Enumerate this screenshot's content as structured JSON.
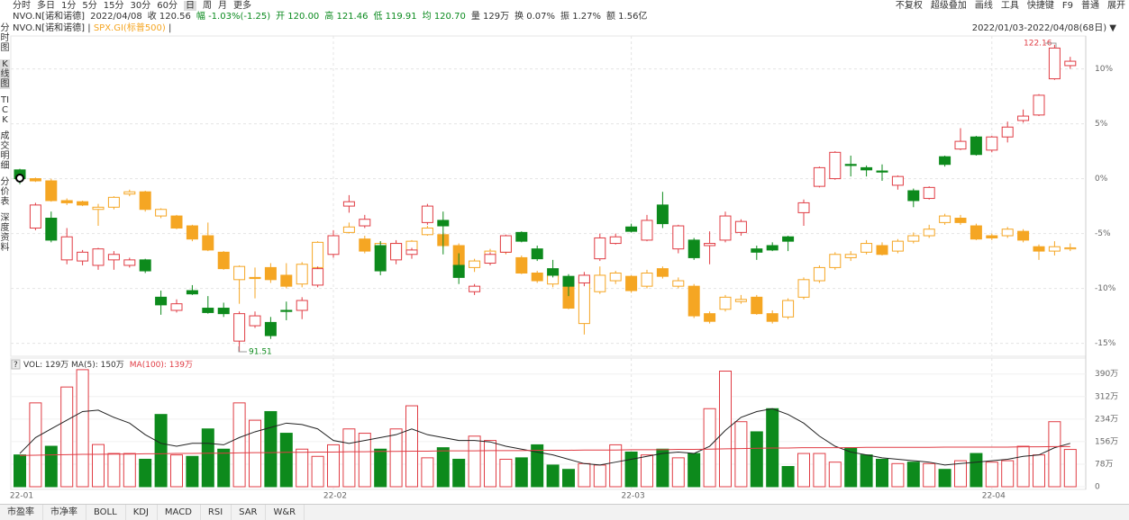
{
  "toolbar": {
    "periods": [
      "分时",
      "多日",
      "1分",
      "5分",
      "15分",
      "30分",
      "60分",
      "日",
      "周",
      "月",
      "更多"
    ],
    "tools": [
      "不复权",
      "超级叠加",
      "画线",
      "工具",
      "快捷键",
      "F9",
      "普通",
      "展开"
    ]
  },
  "info": [
    "NVO.N[诺和诺德]",
    "2022/04/08",
    "收 120.56",
    "幅 -1.03%(-1.25)",
    "开 120.00",
    "高 121.46",
    "低 119.91",
    "均 120.70",
    "量 129万",
    "换 0.07%",
    "振 1.27%",
    "额 1.56亿"
  ],
  "range": "2022/01/03-2022/04/08(68日)",
  "sidebar": [
    "分时图",
    "K线图",
    "TICK",
    "成交明细",
    "分价表",
    "深度资料"
  ],
  "tabs": [
    "市盈率",
    "市净率",
    "BOLL",
    "KDJ",
    "MACD",
    "RSI",
    "SAR",
    "W&R"
  ],
  "chart_data": [
    {
      "type": "candlestick",
      "ylim": [
        -16.1,
        13
      ],
      "yticks": [
        {
          "value": 10,
          "label": "10%"
        },
        {
          "value": 5,
          "label": "5%"
        },
        {
          "value": 0,
          "label": "0%"
        },
        {
          "value": -5,
          "label": "-5%"
        },
        {
          "value": -10,
          "label": "-10%"
        },
        {
          "value": -15,
          "label": "-15%"
        }
      ],
      "grid": true,
      "annotations": [
        "122.16",
        "91.51"
      ],
      "series": [
        {
          "name": "SPX.GI(标普500)",
          "up_color": "#f5a623",
          "down_color": "#f5a623",
          "open": [
            0.1,
            0.0,
            -0.2,
            -2.0,
            -2.1,
            -2.8,
            -2.6,
            -1.4,
            -1.2,
            -3.4,
            -3.4,
            -4.3,
            -5.2,
            -6.7,
            -9.2,
            -9.0,
            -8.1,
            -8.8,
            -9.6,
            -8.1,
            -6.7,
            -4.9,
            -5.5,
            -6.3,
            -5.9,
            -6.6,
            -5.1,
            -5.1,
            -6.1,
            -8.1,
            -7.7,
            -6.7,
            -7.2,
            -8.6,
            -9.6,
            -9.8,
            -13.2,
            -10.3,
            -9.3,
            -8.9,
            -9.8,
            -8.2,
            -9.8,
            -9.8,
            -12.3,
            -11.9,
            -11.2,
            -10.8,
            -12.3,
            -12.6,
            -10.8,
            -9.3,
            -8.1,
            -7.2,
            -6.7,
            -6.1,
            -6.6,
            -5.7,
            -5.2,
            -4.0,
            -3.6,
            -4.3,
            -5.2,
            -5.2,
            -4.8,
            -6.2,
            -6.6,
            -6.4
          ],
          "high": [
            0.3,
            0.1,
            0,
            -1.8,
            -2.0,
            -2.3,
            -1.6,
            -1.0,
            -1.1,
            -2.7,
            -3.3,
            -4.2,
            -4.0,
            -6.6,
            -7.9,
            -8.1,
            -7.7,
            -7.7,
            -7.6,
            -5.7,
            -4.9,
            -4.0,
            -5.2,
            -5.7,
            -5.7,
            -5.6,
            -4.3,
            -4.9,
            -5.9,
            -7.3,
            -6.4,
            -5.5,
            -7.0,
            -8.4,
            -8.3,
            -9.6,
            -8.8,
            -8.0,
            -8.4,
            -8.8,
            -8.3,
            -8.0,
            -9.0,
            -9.6,
            -12.1,
            -10.6,
            -10.6,
            -10.6,
            -12.0,
            -10.9,
            -9.0,
            -7.9,
            -6.7,
            -6.6,
            -5.6,
            -5.8,
            -5.5,
            -4.9,
            -4.2,
            -3.2,
            -3.3,
            -4.1,
            -5.0,
            -4.4,
            -4.6,
            -6.0,
            -5.7,
            -5.9
          ],
          "low": [
            -0.3,
            -0.3,
            -2.1,
            -2.4,
            -2.5,
            -4.3,
            -2.8,
            -1.6,
            -3.0,
            -3.6,
            -4.6,
            -5.7,
            -6.6,
            -8.3,
            -11.4,
            -10.9,
            -9.5,
            -10.0,
            -9.9,
            -8.3,
            -6.9,
            -5.0,
            -6.8,
            -6.8,
            -7.3,
            -6.9,
            -5.2,
            -6.3,
            -8.1,
            -8.5,
            -7.8,
            -6.9,
            -8.7,
            -9.5,
            -9.9,
            -11.9,
            -14.2,
            -10.5,
            -9.6,
            -10.4,
            -10.0,
            -9.1,
            -10.0,
            -12.7,
            -13.2,
            -12.1,
            -11.4,
            -12.4,
            -13.2,
            -12.8,
            -11.0,
            -9.5,
            -8.3,
            -7.5,
            -6.9,
            -7.0,
            -6.8,
            -5.9,
            -5.4,
            -4.2,
            -4.2,
            -5.6,
            -5.6,
            -5.4,
            -5.8,
            -7.4,
            -7.0,
            -6.6
          ],
          "close": [
            0,
            -0.2,
            -2.0,
            -2.2,
            -2.4,
            -2.6,
            -1.7,
            -1.2,
            -2.8,
            -2.8,
            -4.5,
            -5.5,
            -6.5,
            -8.2,
            -8.0,
            -9.1,
            -9.2,
            -9.8,
            -7.8,
            -5.8,
            -5.2,
            -4.4,
            -6.6,
            -5.9,
            -7.2,
            -5.7,
            -4.5,
            -6.1,
            -8.0,
            -7.5,
            -6.6,
            -5.7,
            -8.6,
            -9.3,
            -8.8,
            -11.8,
            -9.0,
            -8.8,
            -8.6,
            -10.2,
            -8.6,
            -8.9,
            -9.3,
            -12.5,
            -13.0,
            -10.8,
            -11.0,
            -12.3,
            -13.0,
            -11.1,
            -9.2,
            -8.1,
            -6.9,
            -6.9,
            -5.9,
            -6.9,
            -5.7,
            -5.2,
            -4.6,
            -3.4,
            -4.0,
            -5.5,
            -5.4,
            -4.6,
            -5.6,
            -6.6,
            -6.2,
            -6.3
          ]
        },
        {
          "name": "NVO.N[诺和诺德]",
          "up_color": "#e03c44",
          "down_color": "#0d8a1c",
          "open": [
            0.8,
            -4.5,
            -3.6,
            -7.4,
            -7.5,
            -7.9,
            -7.4,
            -7.9,
            -7.4,
            -10.8,
            -12.0,
            -10.2,
            -11.8,
            -11.8,
            -14.8,
            -13.4,
            -13.1,
            -12.0,
            -12.0,
            -9.7,
            -6.9,
            -2.5,
            -4.3,
            -6.1,
            -7.4,
            -6.9,
            -4.0,
            -3.8,
            -7.9,
            -10.3,
            -7.7,
            -6.7,
            -4.9,
            -6.4,
            -8.2,
            -8.9,
            -9.5,
            -7.3,
            -5.9,
            -4.4,
            -5.6,
            -2.4,
            -6.4,
            -5.6,
            -6.1,
            -5.6,
            -4.9,
            -6.4,
            -6.1,
            -5.3,
            -3.1,
            -0.7,
            0,
            1.3,
            1.0,
            0.7,
            -0.6,
            -1.1,
            -1.8,
            2.0,
            2.7,
            3.8,
            2.6,
            3.8,
            5.3,
            5.8,
            9.1,
            10.3
          ],
          "high": [
            0.9,
            -2.2,
            -3.0,
            -4.5,
            -6.5,
            -6.3,
            -6.6,
            -7.2,
            -7.3,
            -10.2,
            -11.0,
            -9.7,
            -10.7,
            -11.3,
            -12.1,
            -12.1,
            -12.6,
            -11.2,
            -10.8,
            -8.0,
            -4.7,
            -1.5,
            -3.3,
            -5.7,
            -5.6,
            -6.3,
            -2.3,
            -3.0,
            -6.8,
            -9.6,
            -6.7,
            -5.1,
            -4.8,
            -6.1,
            -7.4,
            -8.7,
            -8.5,
            -5.0,
            -5.0,
            -4.1,
            -3.3,
            -1.2,
            -4.2,
            -5.4,
            -4.8,
            -3.0,
            -3.7,
            -6.1,
            -5.8,
            -5.2,
            -1.9,
            1.1,
            2.5,
            2.1,
            1.2,
            1.3,
            0.3,
            -0.9,
            -0.7,
            2.1,
            4.6,
            3.9,
            3.9,
            5.2,
            6.3,
            7.7,
            12.2,
            11.1
          ],
          "low": [
            -0.5,
            -4.7,
            -5.8,
            -7.8,
            -7.9,
            -8.3,
            -8.3,
            -8.1,
            -8.6,
            -12.4,
            -12.2,
            -10.6,
            -12.3,
            -12.6,
            -15.8,
            -13.6,
            -14.6,
            -12.9,
            -12.8,
            -9.9,
            -7.2,
            -3.1,
            -4.5,
            -8.8,
            -7.8,
            -7.3,
            -4.2,
            -6.9,
            -9.6,
            -10.6,
            -7.9,
            -6.8,
            -5.8,
            -7.5,
            -9.0,
            -10.7,
            -9.8,
            -7.5,
            -6.0,
            -4.9,
            -5.7,
            -4.5,
            -6.8,
            -7.4,
            -7.8,
            -5.8,
            -5.2,
            -7.4,
            -6.6,
            -6.6,
            -4.3,
            -0.8,
            -0.1,
            0.2,
            0.2,
            -0.2,
            -1.0,
            -2.6,
            -1.9,
            1.1,
            2.6,
            2.1,
            2.4,
            3.3,
            5.1,
            5.7,
            9.0,
            10.0
          ],
          "close": [
            0,
            -2.4,
            -5.6,
            -5.3,
            -6.7,
            -6.4,
            -6.9,
            -7.4,
            -8.4,
            -11.5,
            -11.4,
            -10.5,
            -12.2,
            -12.3,
            -12.3,
            -12.5,
            -14.3,
            -12.1,
            -11.1,
            -8.2,
            -5.2,
            -2.1,
            -3.7,
            -8.4,
            -5.9,
            -6.5,
            -2.5,
            -4.3,
            -9.0,
            -9.8,
            -6.9,
            -5.2,
            -5.7,
            -7.3,
            -8.8,
            -9.8,
            -8.8,
            -5.4,
            -5.3,
            -4.8,
            -3.8,
            -4.1,
            -4.3,
            -7.2,
            -5.9,
            -3.4,
            -3.9,
            -6.7,
            -6.5,
            -5.7,
            -2.2,
            1.0,
            2.4,
            1.2,
            0.8,
            0.6,
            0.2,
            -2.0,
            -0.8,
            1.3,
            3.4,
            2.2,
            3.8,
            4.7,
            5.7,
            7.6,
            11.9,
            10.7
          ]
        }
      ]
    },
    {
      "type": "bar",
      "legend": [
        "VOL: 129万 MA(5): 150万",
        "MA(100): 139万"
      ],
      "legend_colors": [
        "#333333",
        "#e03c44"
      ],
      "ylim": [
        0,
        414
      ],
      "yticks": [
        {
          "value": 390,
          "label": "390万"
        },
        {
          "value": 312,
          "label": "312万"
        },
        {
          "value": 234,
          "label": "234万"
        },
        {
          "value": 156,
          "label": "156万"
        },
        {
          "value": 78,
          "label": "78万"
        },
        0
      ],
      "categories": [
        "22-01",
        null,
        null,
        null,
        null,
        null,
        null,
        null,
        null,
        null,
        null,
        null,
        null,
        null,
        null,
        null,
        null,
        null,
        null,
        null,
        "22-02",
        null,
        null,
        null,
        null,
        null,
        null,
        null,
        null,
        null,
        null,
        null,
        null,
        null,
        null,
        null,
        null,
        null,
        null,
        "22-03",
        null,
        null,
        null,
        null,
        null,
        null,
        null,
        null,
        null,
        null,
        null,
        null,
        null,
        null,
        null,
        null,
        null,
        null,
        null,
        null,
        null,
        null,
        "22-04",
        null,
        null,
        null,
        null,
        null
      ],
      "series": [
        {
          "values": [
            110,
            290,
            140,
            345,
            405,
            146,
            115,
            115,
            95,
            250,
            110,
            105,
            200,
            130,
            290,
            230,
            260,
            185,
            130,
            105,
            145,
            200,
            185,
            130,
            200,
            280,
            100,
            135,
            95,
            175,
            160,
            95,
            100,
            145,
            75,
            60,
            80,
            75,
            145,
            120,
            110,
            130,
            100,
            115,
            270,
            400,
            225,
            190,
            270,
            70,
            115,
            115,
            85,
            135,
            110,
            95,
            80,
            85,
            80,
            60,
            90,
            115,
            85,
            90,
            140,
            110,
            225,
            129
          ]
        },
        {
          "color": "#222222",
          "values": [
            115,
            170,
            200,
            230,
            260,
            265,
            240,
            220,
            180,
            150,
            140,
            150,
            150,
            145,
            170,
            190,
            205,
            220,
            215,
            200,
            160,
            150,
            160,
            170,
            180,
            200,
            180,
            170,
            160,
            160,
            155,
            140,
            130,
            120,
            110,
            95,
            80,
            75,
            85,
            95,
            105,
            115,
            120,
            115,
            140,
            195,
            240,
            260,
            270,
            250,
            220,
            175,
            140,
            120,
            110,
            100,
            95,
            90,
            85,
            75,
            80,
            85,
            90,
            95,
            105,
            110,
            135,
            150
          ]
        },
        {
          "color": "#e03c44",
          "values": [
            108,
            109,
            110,
            111,
            112,
            112,
            113,
            113,
            114,
            114,
            115,
            115,
            116,
            116,
            117,
            118,
            118,
            119,
            119,
            120,
            120,
            121,
            121,
            122,
            122,
            123,
            123,
            124,
            124,
            124,
            125,
            125,
            125,
            126,
            126,
            126,
            127,
            127,
            127,
            128,
            128,
            128,
            129,
            129,
            130,
            131,
            132,
            133,
            134,
            134,
            135,
            135,
            135,
            135,
            136,
            136,
            136,
            136,
            136,
            137,
            137,
            137,
            137,
            137,
            138,
            138,
            139,
            139
          ]
        }
      ]
    }
  ]
}
